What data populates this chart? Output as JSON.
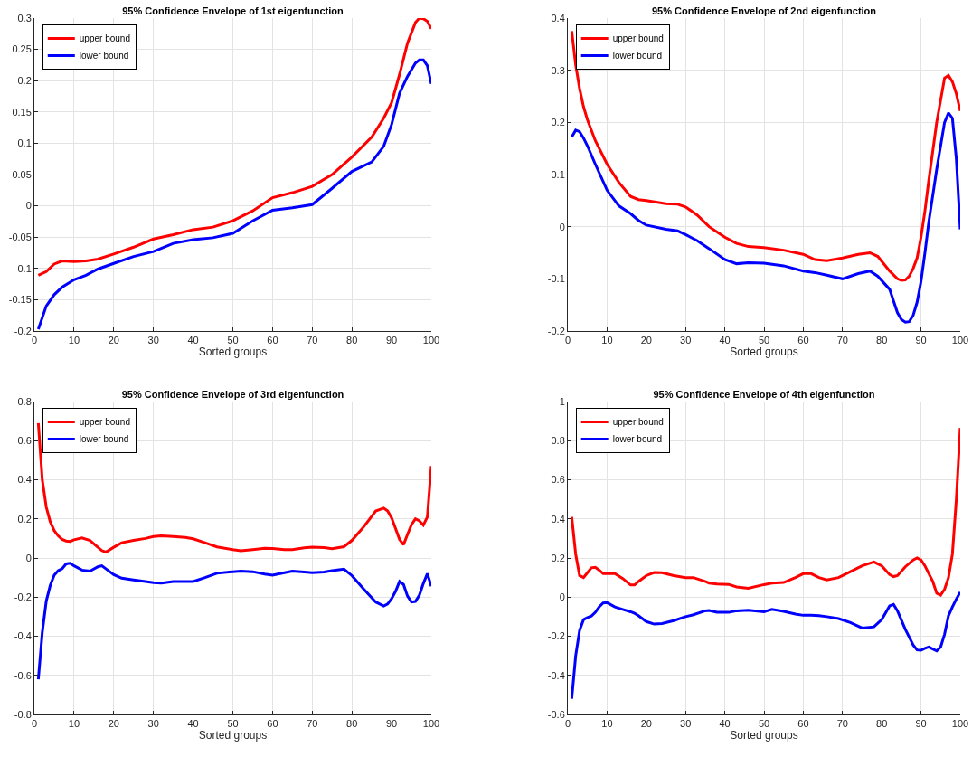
{
  "chart_data": [
    {
      "type": "line",
      "title": "95% Confidence Envelope of 1st eigenfunction",
      "xlabel": "Sorted groups",
      "grid": true,
      "legend": "top left",
      "marker": "none",
      "line_style": "solid",
      "xlim": [
        0,
        100
      ],
      "xticks": [
        0,
        10,
        20,
        30,
        40,
        50,
        60,
        70,
        80,
        90,
        100
      ],
      "ylim": [
        -0.2,
        0.3
      ],
      "yticks": [
        -0.2,
        -0.15,
        -0.1,
        -0.05,
        0,
        0.05,
        0.1,
        0.15,
        0.2,
        0.25,
        0.3
      ],
      "x": [
        1,
        3,
        5,
        7,
        10,
        13,
        16,
        20,
        25,
        30,
        35,
        40,
        45,
        50,
        55,
        60,
        65,
        70,
        75,
        80,
        85,
        88,
        90,
        92,
        94,
        96,
        97,
        98,
        99,
        100
      ],
      "series": [
        {
          "name": "upper bound",
          "color": "#ff0000",
          "values": [
            -0.111,
            -0.105,
            -0.093,
            -0.088,
            -0.089,
            -0.088,
            -0.085,
            -0.077,
            -0.066,
            -0.053,
            -0.046,
            -0.038,
            -0.034,
            -0.024,
            -0.008,
            0.013,
            0.021,
            0.031,
            0.05,
            0.078,
            0.11,
            0.14,
            0.165,
            0.21,
            0.26,
            0.293,
            0.3,
            0.299,
            0.295,
            0.283
          ]
        },
        {
          "name": "lower bound",
          "color": "#0000ff",
          "values": [
            -0.197,
            -0.16,
            -0.142,
            -0.13,
            -0.118,
            -0.111,
            -0.101,
            -0.092,
            -0.081,
            -0.073,
            -0.06,
            -0.054,
            -0.051,
            -0.044,
            -0.024,
            -0.007,
            -0.003,
            0.002,
            0.028,
            0.055,
            0.07,
            0.095,
            0.13,
            0.18,
            0.207,
            0.228,
            0.233,
            0.233,
            0.224,
            0.195
          ]
        }
      ]
    },
    {
      "type": "line",
      "title": "95% Confidence Envelope of 2nd eigenfunction",
      "xlabel": "Sorted groups",
      "grid": true,
      "legend": "top left",
      "marker": "none",
      "line_style": "solid",
      "xlim": [
        0,
        100
      ],
      "xticks": [
        0,
        10,
        20,
        30,
        40,
        50,
        60,
        70,
        80,
        90,
        100
      ],
      "ylim": [
        -0.2,
        0.4
      ],
      "yticks": [
        -0.2,
        -0.1,
        0,
        0.1,
        0.2,
        0.3,
        0.4
      ],
      "x": [
        1,
        2,
        3,
        4,
        5,
        7,
        10,
        13,
        16,
        18,
        20,
        25,
        28,
        30,
        33,
        36,
        40,
        43,
        46,
        50,
        55,
        60,
        63,
        66,
        70,
        74,
        77,
        79,
        82,
        84,
        85,
        86,
        87,
        88,
        89,
        90,
        91,
        92,
        94,
        96,
        97,
        98,
        99,
        100
      ],
      "series": [
        {
          "name": "upper bound",
          "color": "#ff0000",
          "values": [
            0.375,
            0.31,
            0.265,
            0.23,
            0.205,
            0.165,
            0.12,
            0.085,
            0.058,
            0.052,
            0.05,
            0.044,
            0.043,
            0.038,
            0.022,
            0.0,
            -0.02,
            -0.032,
            -0.038,
            -0.04,
            -0.045,
            -0.053,
            -0.063,
            -0.065,
            -0.06,
            -0.053,
            -0.05,
            -0.057,
            -0.085,
            -0.1,
            -0.103,
            -0.102,
            -0.095,
            -0.08,
            -0.06,
            -0.02,
            0.03,
            0.09,
            0.2,
            0.285,
            0.29,
            0.278,
            0.255,
            0.222
          ]
        },
        {
          "name": "lower bound",
          "color": "#0000ff",
          "values": [
            0.172,
            0.185,
            0.182,
            0.17,
            0.155,
            0.12,
            0.07,
            0.04,
            0.025,
            0.012,
            0.003,
            -0.005,
            -0.008,
            -0.015,
            -0.027,
            -0.042,
            -0.063,
            -0.071,
            -0.069,
            -0.07,
            -0.075,
            -0.085,
            -0.088,
            -0.093,
            -0.1,
            -0.09,
            -0.085,
            -0.095,
            -0.12,
            -0.165,
            -0.178,
            -0.183,
            -0.182,
            -0.17,
            -0.145,
            -0.105,
            -0.05,
            0.01,
            0.11,
            0.2,
            0.218,
            0.208,
            0.13,
            -0.005
          ]
        }
      ]
    },
    {
      "type": "line",
      "title": "95% Confidence Envelope of 3rd eigenfunction",
      "xlabel": "Sorted groups",
      "grid": true,
      "legend": "top left",
      "marker": "none",
      "line_style": "solid",
      "xlim": [
        0,
        100
      ],
      "xticks": [
        0,
        10,
        20,
        30,
        40,
        50,
        60,
        70,
        80,
        90,
        100
      ],
      "ylim": [
        -0.8,
        0.8
      ],
      "yticks": [
        -0.8,
        -0.6,
        -0.4,
        -0.2,
        0,
        0.2,
        0.4,
        0.6,
        0.8
      ],
      "x": [
        1,
        2,
        3,
        4,
        5,
        6,
        7,
        8,
        9,
        10,
        12,
        14,
        16,
        17,
        18,
        20,
        22,
        25,
        28,
        30,
        32,
        35,
        38,
        40,
        43,
        46,
        50,
        52,
        55,
        58,
        60,
        63,
        65,
        68,
        70,
        73,
        75,
        78,
        80,
        83,
        86,
        88,
        89,
        90,
        91,
        92,
        93,
        94,
        95,
        96,
        97,
        98,
        99,
        100
      ],
      "series": [
        {
          "name": "upper bound",
          "color": "#ff0000",
          "values": [
            0.69,
            0.4,
            0.26,
            0.185,
            0.14,
            0.113,
            0.095,
            0.087,
            0.085,
            0.093,
            0.103,
            0.09,
            0.055,
            0.038,
            0.03,
            0.055,
            0.078,
            0.09,
            0.1,
            0.11,
            0.113,
            0.11,
            0.105,
            0.098,
            0.078,
            0.057,
            0.043,
            0.037,
            0.043,
            0.05,
            0.048,
            0.043,
            0.043,
            0.052,
            0.055,
            0.053,
            0.048,
            0.058,
            0.09,
            0.16,
            0.24,
            0.255,
            0.24,
            0.205,
            0.15,
            0.095,
            0.068,
            0.12,
            0.17,
            0.2,
            0.19,
            0.168,
            0.21,
            0.47
          ]
        },
        {
          "name": "lower bound",
          "color": "#0000ff",
          "values": [
            -0.62,
            -0.38,
            -0.22,
            -0.14,
            -0.088,
            -0.065,
            -0.055,
            -0.03,
            -0.027,
            -0.04,
            -0.062,
            -0.067,
            -0.045,
            -0.04,
            -0.055,
            -0.085,
            -0.103,
            -0.112,
            -0.12,
            -0.126,
            -0.128,
            -0.12,
            -0.12,
            -0.12,
            -0.1,
            -0.078,
            -0.07,
            -0.067,
            -0.07,
            -0.082,
            -0.088,
            -0.075,
            -0.067,
            -0.072,
            -0.075,
            -0.072,
            -0.065,
            -0.057,
            -0.09,
            -0.16,
            -0.225,
            -0.245,
            -0.235,
            -0.208,
            -0.17,
            -0.12,
            -0.135,
            -0.195,
            -0.225,
            -0.222,
            -0.19,
            -0.13,
            -0.08,
            -0.145
          ]
        }
      ]
    },
    {
      "type": "line",
      "title": "95% Confidence Envelope of 4th eigenfunction",
      "xlabel": "Sorted groups",
      "grid": true,
      "legend": "top left",
      "marker": "none",
      "line_style": "solid",
      "xlim": [
        0,
        100
      ],
      "xticks": [
        0,
        10,
        20,
        30,
        40,
        50,
        60,
        70,
        80,
        90,
        100
      ],
      "ylim": [
        -0.6,
        1
      ],
      "yticks": [
        -0.6,
        -0.4,
        -0.2,
        0,
        0.2,
        0.4,
        0.6,
        0.8,
        1
      ],
      "x": [
        1,
        2,
        3,
        4,
        5,
        6,
        7,
        8,
        9,
        10,
        12,
        14,
        16,
        17,
        18,
        20,
        22,
        24,
        27,
        30,
        32,
        35,
        36,
        38,
        41,
        43,
        46,
        50,
        52,
        55,
        58,
        60,
        62,
        64,
        66,
        69,
        72,
        75,
        78,
        80,
        82,
        83,
        84,
        86,
        88,
        89,
        90,
        91,
        92,
        93,
        94,
        95,
        96,
        97,
        98,
        99,
        100
      ],
      "series": [
        {
          "name": "upper bound",
          "color": "#ff0000",
          "values": [
            0.41,
            0.22,
            0.11,
            0.1,
            0.125,
            0.15,
            0.152,
            0.138,
            0.12,
            0.12,
            0.12,
            0.095,
            0.062,
            0.062,
            0.08,
            0.11,
            0.126,
            0.125,
            0.11,
            0.1,
            0.1,
            0.08,
            0.072,
            0.067,
            0.065,
            0.052,
            0.045,
            0.064,
            0.072,
            0.075,
            0.1,
            0.12,
            0.12,
            0.1,
            0.088,
            0.1,
            0.13,
            0.16,
            0.18,
            0.16,
            0.115,
            0.105,
            0.11,
            0.155,
            0.19,
            0.2,
            0.19,
            0.16,
            0.12,
            0.08,
            0.02,
            0.01,
            0.04,
            0.1,
            0.22,
            0.5,
            0.865
          ]
        },
        {
          "name": "lower bound",
          "color": "#0000ff",
          "values": [
            -0.52,
            -0.3,
            -0.17,
            -0.115,
            -0.105,
            -0.097,
            -0.078,
            -0.05,
            -0.03,
            -0.028,
            -0.05,
            -0.063,
            -0.075,
            -0.083,
            -0.095,
            -0.125,
            -0.138,
            -0.135,
            -0.12,
            -0.1,
            -0.09,
            -0.07,
            -0.068,
            -0.077,
            -0.078,
            -0.07,
            -0.067,
            -0.075,
            -0.063,
            -0.073,
            -0.087,
            -0.093,
            -0.092,
            -0.095,
            -0.1,
            -0.11,
            -0.13,
            -0.158,
            -0.152,
            -0.115,
            -0.045,
            -0.037,
            -0.07,
            -0.165,
            -0.245,
            -0.27,
            -0.272,
            -0.262,
            -0.255,
            -0.265,
            -0.275,
            -0.255,
            -0.19,
            -0.095,
            -0.05,
            -0.01,
            0.025
          ]
        }
      ]
    }
  ]
}
